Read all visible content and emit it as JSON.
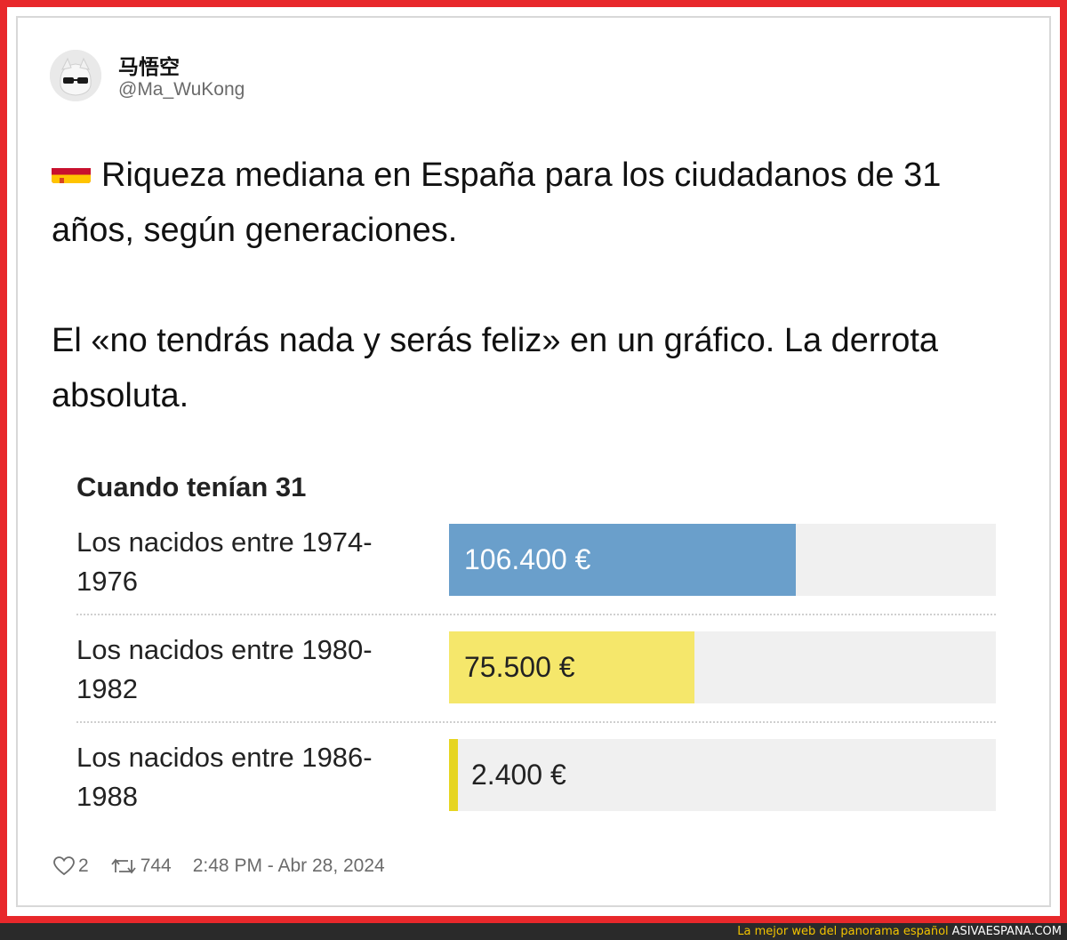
{
  "tweet": {
    "display_name": "马悟空",
    "handle": "@Ma_WuKong",
    "flag_icon": "spain-flag-icon",
    "text_line1": "Riqueza mediana en España para los ciudadanos de 31 años, según generaciones.",
    "text_line2": "El «no tendrás nada y serás feliz» en un gráfico. La derrota absoluta.",
    "likes": "2",
    "retweets": "744",
    "timestamp": "2:48 PM - Abr 28, 2024"
  },
  "chart_data": {
    "type": "bar",
    "title": "Cuando tenían 31",
    "categories": [
      "Los nacidos entre 1974-1976",
      "Los nacidos entre 1980-1982",
      "Los nacidos entre 1986-1988"
    ],
    "category_lines": [
      [
        "Los nacidos entre 1974-",
        "1976"
      ],
      [
        "Los nacidos entre 1980-",
        "1982"
      ],
      [
        "Los nacidos entre 1986-",
        "1988"
      ]
    ],
    "values": [
      106400,
      75500,
      2400
    ],
    "value_labels": [
      "106.400 €",
      "75.500 €",
      "2.400 €"
    ],
    "colors": [
      "#6a9fcb",
      "#f5e76b",
      "#e6d521"
    ],
    "value_text_colors": [
      "#ffffff",
      "#222222",
      "#222222"
    ],
    "xlim": [
      0,
      168000
    ]
  },
  "banner": {
    "tagline": "La mejor web del panorama español",
    "site": "ASIVAESPANA.COM"
  }
}
